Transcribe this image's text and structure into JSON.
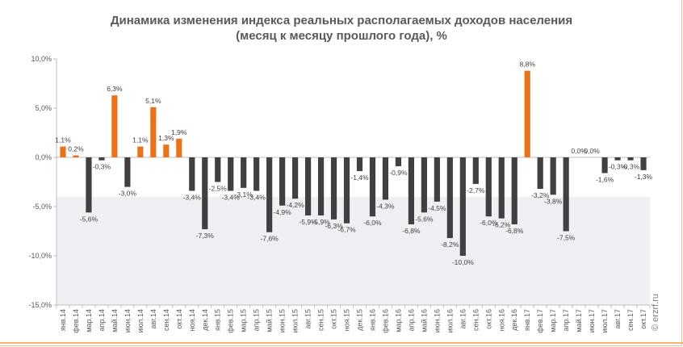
{
  "chart_data": {
    "type": "bar",
    "title": "Динамика изменения индекса реальных располагаемых доходов населения",
    "subtitle": "(месяц к месяцу прошлого года), %",
    "xlabel": "",
    "ylabel": "",
    "ylim": [
      -15,
      10
    ],
    "yticks": [
      "10,0%",
      "5,0%",
      "0,0%",
      "-5,0%",
      "-10,0%",
      "-15,0%"
    ],
    "ytick_values": [
      10,
      5,
      0,
      -5,
      -10,
      -15
    ],
    "grid": false,
    "legend": "none",
    "colors": {
      "highlight": "#e8731a",
      "normal": "#404040",
      "lower_band": "#f1eff4"
    },
    "categories": [
      "янв.14",
      "фев.14",
      "мар.14",
      "апр.14",
      "май.14",
      "июн.14",
      "июл.14",
      "авг.14",
      "сен.14",
      "окт.14",
      "ноя.14",
      "дек.14",
      "янв.15",
      "фев.15",
      "мар.15",
      "апр.15",
      "май.15",
      "июн.15",
      "июл.15",
      "авг.15",
      "сен.15",
      "окт.15",
      "ноя.15",
      "дек.15",
      "янв.16",
      "фев.16",
      "мар.16",
      "апр.16",
      "май.16",
      "июн.16",
      "июл.16",
      "авг.16",
      "сен.16",
      "окт.16",
      "ноя.16",
      "дек.16",
      "янв.17",
      "фев.17",
      "мар.17",
      "апр.17",
      "май.17",
      "июн.17",
      "июл.17",
      "авг.17",
      "сен.17",
      "окт.17"
    ],
    "values": [
      1.1,
      0.2,
      -5.6,
      -0.3,
      6.3,
      -3.0,
      1.1,
      5.1,
      1.3,
      1.9,
      -3.4,
      -7.3,
      -2.5,
      -3.4,
      -3.1,
      -3.4,
      -7.6,
      -4.9,
      -4.2,
      -5.9,
      -5.9,
      -6.3,
      -6.7,
      -1.4,
      -6.0,
      -4.3,
      -0.9,
      -6.8,
      -5.6,
      -4.5,
      -8.2,
      -10.0,
      -2.7,
      -6.0,
      -6.2,
      -6.8,
      8.8,
      -3.2,
      -3.8,
      -7.5,
      0.0,
      0.0,
      -1.6,
      -0.3,
      -0.3,
      -1.3
    ],
    "data_labels": [
      "1,1%",
      "0,2%",
      "-5,6%",
      "-0,3%",
      "6,3%",
      "-3,0%",
      "1,1%",
      "5,1%",
      "1,3%",
      "1,9%",
      "-3,4%",
      "-7,3%",
      "-2,5%",
      "-3,4%",
      "-3,1%",
      "-3,4%",
      "-7,6%",
      "-4,9%",
      "-4,2%",
      "-5,9%",
      "-5,9%",
      "-6,3%",
      "-6,7%",
      "-1,4%",
      "-6,0%",
      "-4,3%",
      "-0,9%",
      "-6,8%",
      "-5,6%",
      "-4,5%",
      "-8,2%",
      "-10,0%",
      "-2,7%",
      "-6,0%",
      "-6,2%",
      "-6,8%",
      "8,8%",
      "-3,2%",
      "-3,8%",
      "-7,5%",
      "0,0%",
      "0,0%",
      "-1,6%",
      "-0,3%",
      "-0,3%",
      "-1,3%"
    ]
  },
  "watermark": "© erzrf.ru"
}
